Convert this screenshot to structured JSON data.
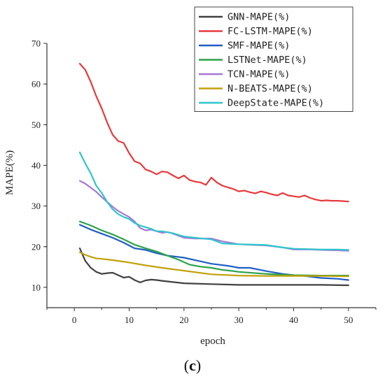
{
  "chart_data": {
    "type": "line",
    "title": "",
    "xlabel": "epoch",
    "ylabel": "MAPE(%)",
    "panel_label_open": "(",
    "panel_label_letter": "c",
    "panel_label_close": ")",
    "xlim": [
      -5,
      55
    ],
    "ylim": [
      5,
      70
    ],
    "xticks": [
      0,
      10,
      20,
      30,
      40,
      50
    ],
    "yticks": [
      10,
      20,
      30,
      40,
      50,
      60,
      70
    ],
    "grid": false,
    "legend_position": "top-right",
    "series": [
      {
        "name": "GNN-MAPE(%)",
        "color": "#404040",
        "x": [
          1,
          2,
          3,
          4,
          5,
          6,
          7,
          8,
          9,
          10,
          11,
          12,
          13,
          14,
          15,
          16,
          18,
          20,
          25,
          30,
          35,
          40,
          45,
          50
        ],
        "y": [
          19.6,
          16.5,
          14.8,
          13.8,
          13.3,
          13.5,
          13.6,
          13.0,
          12.4,
          12.6,
          11.8,
          11.2,
          11.7,
          11.9,
          11.8,
          11.6,
          11.3,
          11.0,
          10.8,
          10.6,
          10.6,
          10.6,
          10.6,
          10.5
        ]
      },
      {
        "name": "FC-LSTM-MAPE(%)",
        "color": "#e8393b",
        "x": [
          1,
          2,
          3,
          4,
          5,
          6,
          7,
          8,
          9,
          10,
          11,
          12,
          13,
          14,
          15,
          16,
          17,
          18,
          19,
          20,
          21,
          22,
          23,
          24,
          25,
          26,
          27,
          28,
          29,
          30,
          31,
          32,
          33,
          34,
          35,
          36,
          37,
          38,
          39,
          40,
          41,
          42,
          43,
          44,
          45,
          46,
          47,
          48,
          49,
          50
        ],
        "y": [
          65,
          63.5,
          60.5,
          57,
          54,
          50.5,
          47.5,
          46,
          45.5,
          43,
          41,
          40.5,
          39,
          38.5,
          37.8,
          38.5,
          38.3,
          37.5,
          36.8,
          37.5,
          36.4,
          36,
          35.8,
          35.2,
          37,
          35.8,
          35,
          34.6,
          34.2,
          33.6,
          33.8,
          33.4,
          33.1,
          33.6,
          33.3,
          32.9,
          32.6,
          33.2,
          32.6,
          32.4,
          32.2,
          32.6,
          32.0,
          31.6,
          31.3,
          31.4,
          31.3,
          31.3,
          31.2,
          31.1
        ]
      },
      {
        "name": "SMF-MAPE(%)",
        "color": "#1f5fc4",
        "x": [
          1,
          3,
          5,
          7,
          9,
          11,
          13,
          15,
          17,
          20,
          23,
          25,
          28,
          30,
          32,
          35,
          38,
          40,
          42,
          45,
          48,
          50
        ],
        "y": [
          25.4,
          24.2,
          23.2,
          22.2,
          21.0,
          19.6,
          19.2,
          18.4,
          17.8,
          17.3,
          16.4,
          15.8,
          15.3,
          14.8,
          14.8,
          14.0,
          13.3,
          13.0,
          12.8,
          12.3,
          12.1,
          11.8
        ]
      },
      {
        "name": "LSTNet-MAPE(%)",
        "color": "#2ca24b",
        "x": [
          1,
          3,
          5,
          7,
          9,
          11,
          13,
          15,
          17,
          19,
          21,
          23,
          25,
          27,
          29,
          30,
          35,
          40,
          45,
          50
        ],
        "y": [
          26.2,
          25.2,
          24.0,
          23.0,
          21.8,
          20.5,
          19.6,
          18.8,
          17.8,
          16.8,
          15.6,
          15.1,
          14.8,
          14.3,
          14.0,
          13.8,
          13.3,
          13.0,
          12.9,
          12.9
        ]
      },
      {
        "name": "TCN-MAPE(%)",
        "color": "#a678d6",
        "x": [
          1,
          2,
          3,
          4,
          5,
          6,
          7,
          8,
          9,
          10,
          11,
          12,
          13,
          14,
          15,
          16,
          17,
          18,
          20,
          22,
          25,
          27,
          30,
          33,
          35,
          38,
          40,
          43,
          45,
          48,
          50
        ],
        "y": [
          36.2,
          35.5,
          34.5,
          33.5,
          32.2,
          31.0,
          29.8,
          28.8,
          28.0,
          27.3,
          26.2,
          24.6,
          24.0,
          24.2,
          23.8,
          23.4,
          23.6,
          23.2,
          22.2,
          22.0,
          22.0,
          21.3,
          20.6,
          20.4,
          20.3,
          19.8,
          19.3,
          19.3,
          19.2,
          19.1,
          19.0
        ]
      },
      {
        "name": "N-BEATS-MAPE(%)",
        "color": "#c2a10a",
        "x": [
          1,
          2,
          3,
          4,
          5,
          7,
          10,
          13,
          16,
          20,
          25,
          30,
          35,
          40,
          45,
          50
        ],
        "y": [
          18.6,
          18.0,
          17.5,
          17.1,
          17.0,
          16.7,
          16.1,
          15.4,
          14.8,
          14.1,
          13.2,
          12.9,
          12.8,
          12.8,
          12.8,
          12.7
        ]
      },
      {
        "name": "DeepState-MAPE(%)",
        "color": "#2ec6cc",
        "x": [
          1,
          2,
          3,
          4,
          5,
          6,
          7,
          8,
          9,
          10,
          11,
          12,
          13,
          14,
          15,
          16,
          18,
          20,
          22,
          25,
          27,
          30,
          33,
          35,
          38,
          40,
          43,
          45,
          48,
          50
        ],
        "y": [
          43.2,
          40.5,
          38,
          35,
          33.2,
          31.0,
          29.2,
          28.0,
          27.3,
          26.8,
          25.8,
          25.2,
          24.8,
          24.4,
          23.8,
          23.8,
          23.3,
          22.5,
          22.2,
          21.8,
          20.8,
          20.6,
          20.5,
          20.4,
          19.8,
          19.5,
          19.4,
          19.3,
          19.3,
          19.2
        ]
      }
    ]
  }
}
